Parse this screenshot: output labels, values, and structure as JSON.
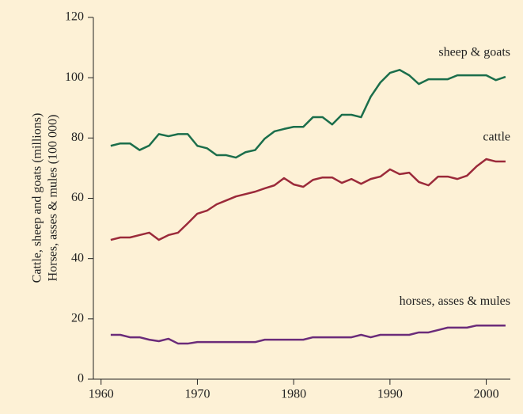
{
  "chart_data": {
    "type": "line",
    "y_label": [
      "Cattle, sheep and goats (millions)",
      "Horses, asses & mules (100 000)"
    ],
    "x": [
      1961,
      1962,
      1963,
      1964,
      1965,
      1966,
      1967,
      1968,
      1969,
      1970,
      1971,
      1972,
      1973,
      1974,
      1975,
      1976,
      1977,
      1978,
      1979,
      1980,
      1981,
      1982,
      1983,
      1984,
      1985,
      1986,
      1987,
      1988,
      1989,
      1990,
      1991,
      1992,
      1993,
      1994,
      1995,
      1996,
      1997,
      1998,
      1999,
      2000,
      2001,
      2002
    ],
    "series": [
      {
        "name": "sheep & goats",
        "color": "#1b6e4b",
        "values": [
          77.4,
          78.2,
          78.2,
          76,
          77.5,
          81.3,
          80.6,
          81.3,
          81.3,
          77.4,
          76.6,
          74.3,
          74.3,
          73.5,
          75.3,
          76,
          79.8,
          82.2,
          83,
          83.7,
          83.7,
          86.9,
          86.9,
          84.5,
          87.7,
          87.7,
          86.9,
          93.7,
          98.4,
          101.6,
          102.6,
          100.8,
          97.9,
          99.5,
          99.5,
          99.5,
          100.8,
          100.8,
          100.8,
          100.8,
          99.2,
          100.3
        ]
      },
      {
        "name": "cattle",
        "color": "#9b2a3a",
        "values": [
          46.2,
          47,
          47,
          47.8,
          48.6,
          46.2,
          47.8,
          48.6,
          51.7,
          54.9,
          55.9,
          58,
          59.3,
          60.6,
          61.4,
          62.2,
          63.3,
          64.3,
          66.7,
          64.6,
          63.8,
          66.1,
          66.9,
          66.9,
          65.1,
          66.4,
          64.8,
          66.4,
          67.2,
          69.6,
          68,
          68.5,
          65.4,
          64.3,
          67.2,
          67.2,
          66.4,
          67.5,
          70.6,
          73,
          72.2,
          72.2
        ]
      },
      {
        "name": "horses, asses & mules",
        "color": "#6b2c7a",
        "values": [
          14.7,
          14.7,
          13.9,
          13.9,
          13.1,
          12.6,
          13.4,
          11.8,
          11.8,
          12.3,
          12.3,
          12.3,
          12.3,
          12.3,
          12.3,
          12.3,
          13.1,
          13.1,
          13.1,
          13.1,
          13.1,
          13.9,
          13.9,
          13.9,
          13.9,
          13.9,
          14.7,
          13.9,
          14.7,
          14.7,
          14.7,
          14.7,
          15.5,
          15.5,
          16.3,
          17.1,
          17.1,
          17.1,
          17.8,
          17.8,
          17.8,
          17.8
        ]
      }
    ],
    "xlim": [
      1959.2,
      2002.5
    ],
    "xticks": [
      1960,
      1970,
      1980,
      1990,
      2000
    ],
    "ylim": [
      0,
      120
    ],
    "yticks": [
      0,
      20,
      40,
      60,
      80,
      100,
      120
    ]
  }
}
